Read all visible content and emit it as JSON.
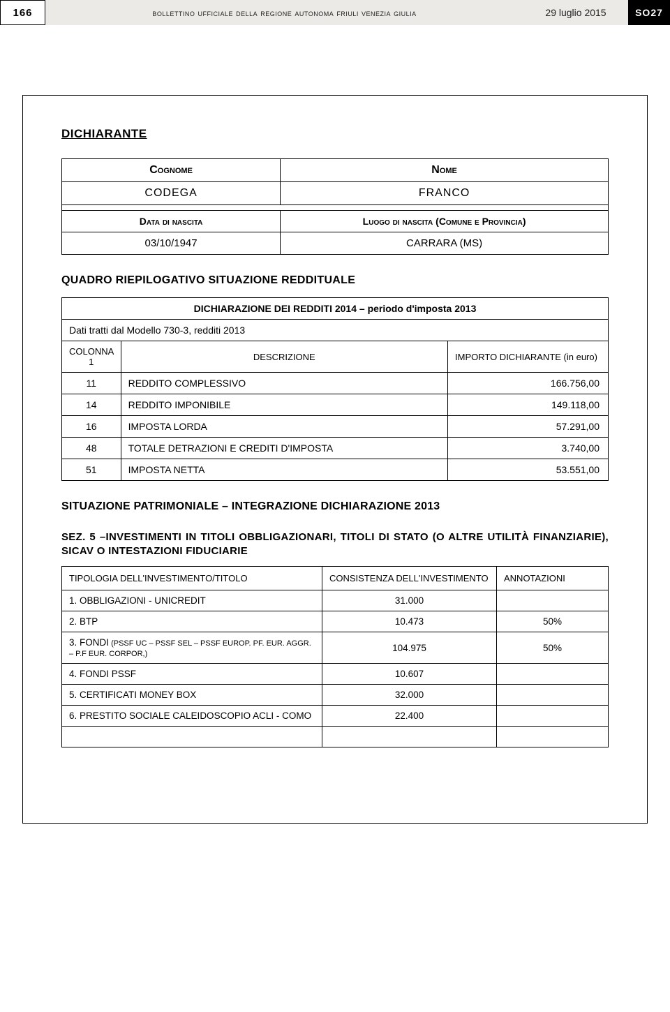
{
  "header": {
    "page_num_left": "166",
    "bulletin_title": "bollettino ufficiale della regione autonoma friuli venezia giulia",
    "date": "29 luglio 2015",
    "page_num_right": "SO27"
  },
  "dichiarante": {
    "section_title": "DICHIARANTE",
    "cognome_label": "Cognome",
    "nome_label": "Nome",
    "cognome_value": "CODEGA",
    "nome_value": "FRANCO",
    "data_nascita_label": "Data di nascita",
    "luogo_nascita_label": "Luogo di nascita (Comune e Provincia)",
    "data_nascita_value": "03/10/1947",
    "luogo_nascita_value": "CARRARA (MS)"
  },
  "quadro": {
    "title": "QUADRO RIEPILOGATIVO SITUAZIONE REDDITUALE",
    "dich_header": "DICHIARAZIONE DEI REDDITI 2014 – periodo d'imposta 2013",
    "dati_tratti": "Dati tratti dal Modello 730-3, redditi 2013",
    "col1": "COLONNA 1",
    "col2": "DESCRIZIONE",
    "col3": "IMPORTO DICHIARANTE (in euro)",
    "rows": [
      {
        "c": "11",
        "desc": "REDDITO COMPLESSIVO",
        "amt": "166.756,00"
      },
      {
        "c": "14",
        "desc": "REDDITO IMPONIBILE",
        "amt": "149.118,00"
      },
      {
        "c": "16",
        "desc": "IMPOSTA LORDA",
        "amt": "57.291,00"
      },
      {
        "c": "48",
        "desc": "TOTALE DETRAZIONI E CREDITI D'IMPOSTA",
        "amt": "3.740,00"
      },
      {
        "c": "51",
        "desc": "IMPOSTA NETTA",
        "amt": "53.551,00"
      }
    ]
  },
  "situazione": {
    "title": "SITUAZIONE PATRIMONIALE – INTEGRAZIONE DICHIARAZIONE 2013",
    "sez_title": "SEZ. 5 –INVESTIMENTI IN TITOLI OBBLIGAZIONARI, TITOLI DI STATO (O ALTRE UTILITÀ FINANZIARIE), SICAV O INTESTAZIONI FIDUCIARIE",
    "col1": "TIPOLOGIA DELL'INVESTIMENTO/TITOLO",
    "col2": "CONSISTENZA DELL'INVESTIMENTO",
    "col3": "ANNOTAZIONI",
    "rows": [
      {
        "tip": "1. OBBLIGAZIONI - UNICREDIT",
        "cons": "31.000",
        "ann": ""
      },
      {
        "tip": "2. BTP",
        "cons": "10.473",
        "ann": "50%"
      },
      {
        "tip": "3. FONDI",
        "note": " (PSSF UC – PSSF SEL – PSSF EUROP.  PF. EUR. AGGR. – P.F EUR. CORPOR,)",
        "cons": "104.975",
        "ann": "50%"
      },
      {
        "tip": "4. FONDI PSSF",
        "cons": "10.607",
        "ann": ""
      },
      {
        "tip": "5. CERTIFICATI  MONEY BOX",
        "cons": "32.000",
        "ann": ""
      },
      {
        "tip": "6. PRESTITO SOCIALE CALEIDOSCOPIO ACLI - COMO",
        "cons": "22.400",
        "ann": ""
      }
    ]
  }
}
